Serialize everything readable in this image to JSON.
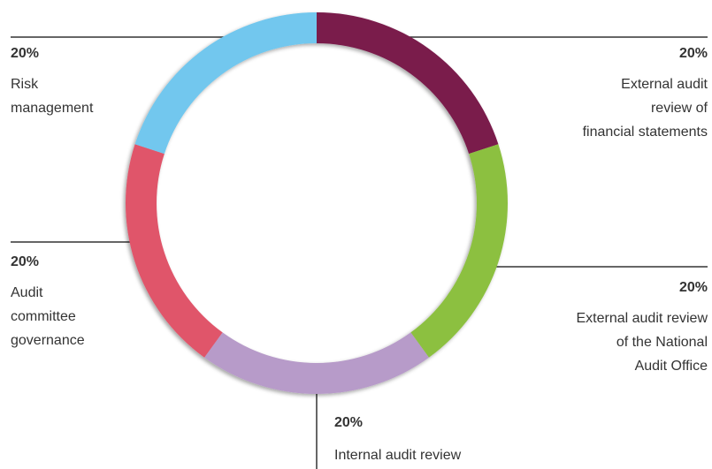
{
  "chart_data": {
    "type": "donut",
    "categories": [
      "External audit\nreview of\nfinancial statements",
      "External audit review\nof the National\nAudit Office",
      "Internal audit review",
      "Audit\ncommittee\ngovernance",
      "Risk\nmanagement"
    ],
    "values": [
      20,
      20,
      20,
      20,
      20
    ],
    "value_labels": [
      "20%",
      "20%",
      "20%",
      "20%",
      "20%"
    ],
    "colors": [
      "#7a1a4b",
      "#8cc040",
      "#b79bc9",
      "#e0546a",
      "#72c7ee"
    ]
  }
}
